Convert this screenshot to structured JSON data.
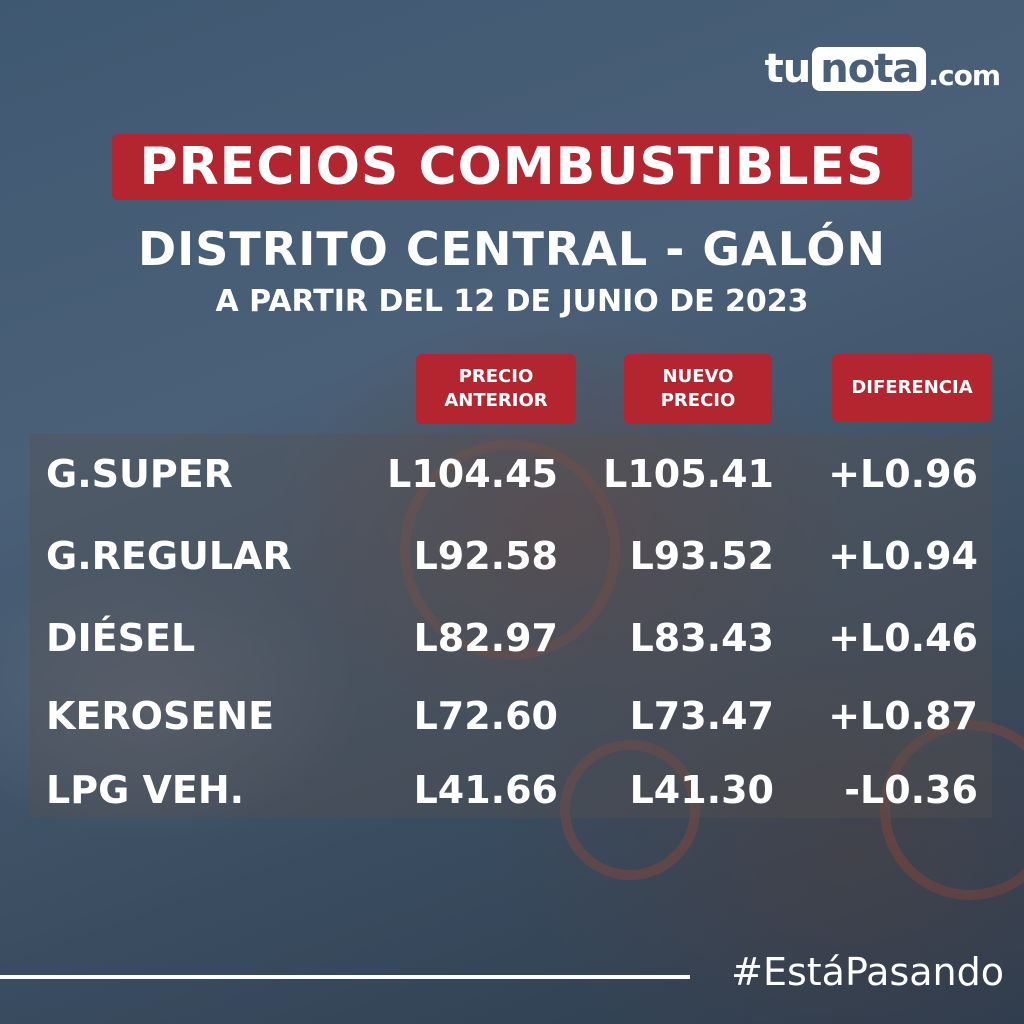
{
  "brand": {
    "logo_tu": "tu",
    "logo_nota": "nota",
    "logo_com": ".com"
  },
  "header": {
    "title": "PRECIOS COMBUSTIBLES",
    "subtitle": "DISTRITO CENTRAL - GALÓN",
    "date": "A PARTIR DEL 12 DE JUNIO DE 2023"
  },
  "columns": {
    "previous": [
      "PRECIO",
      "ANTERIOR"
    ],
    "new": [
      "NUEVO",
      "PRECIO"
    ],
    "difference": "DIFERENCIA"
  },
  "rows": [
    {
      "name": "G.SUPER",
      "previous": "L104.45",
      "new": "L105.41",
      "difference": "+L0.96"
    },
    {
      "name": "G.REGULAR",
      "previous": "L92.58",
      "new": "L93.52",
      "difference": "+L0.94"
    },
    {
      "name": "DIÉSEL",
      "previous": "L82.97",
      "new": "L83.43",
      "difference": "+L0.46"
    },
    {
      "name": "KEROSENE",
      "previous": "L72.60",
      "new": "L73.47",
      "difference": "+L0.87"
    },
    {
      "name": "LPG VEH.",
      "previous": "L41.66",
      "new": "L41.30",
      "difference": "-L0.36"
    }
  ],
  "footer": {
    "hashtag": "#EstáPasando"
  },
  "colors": {
    "accent": "#b3252f",
    "background": "#4a6078",
    "text": "#ffffff"
  }
}
